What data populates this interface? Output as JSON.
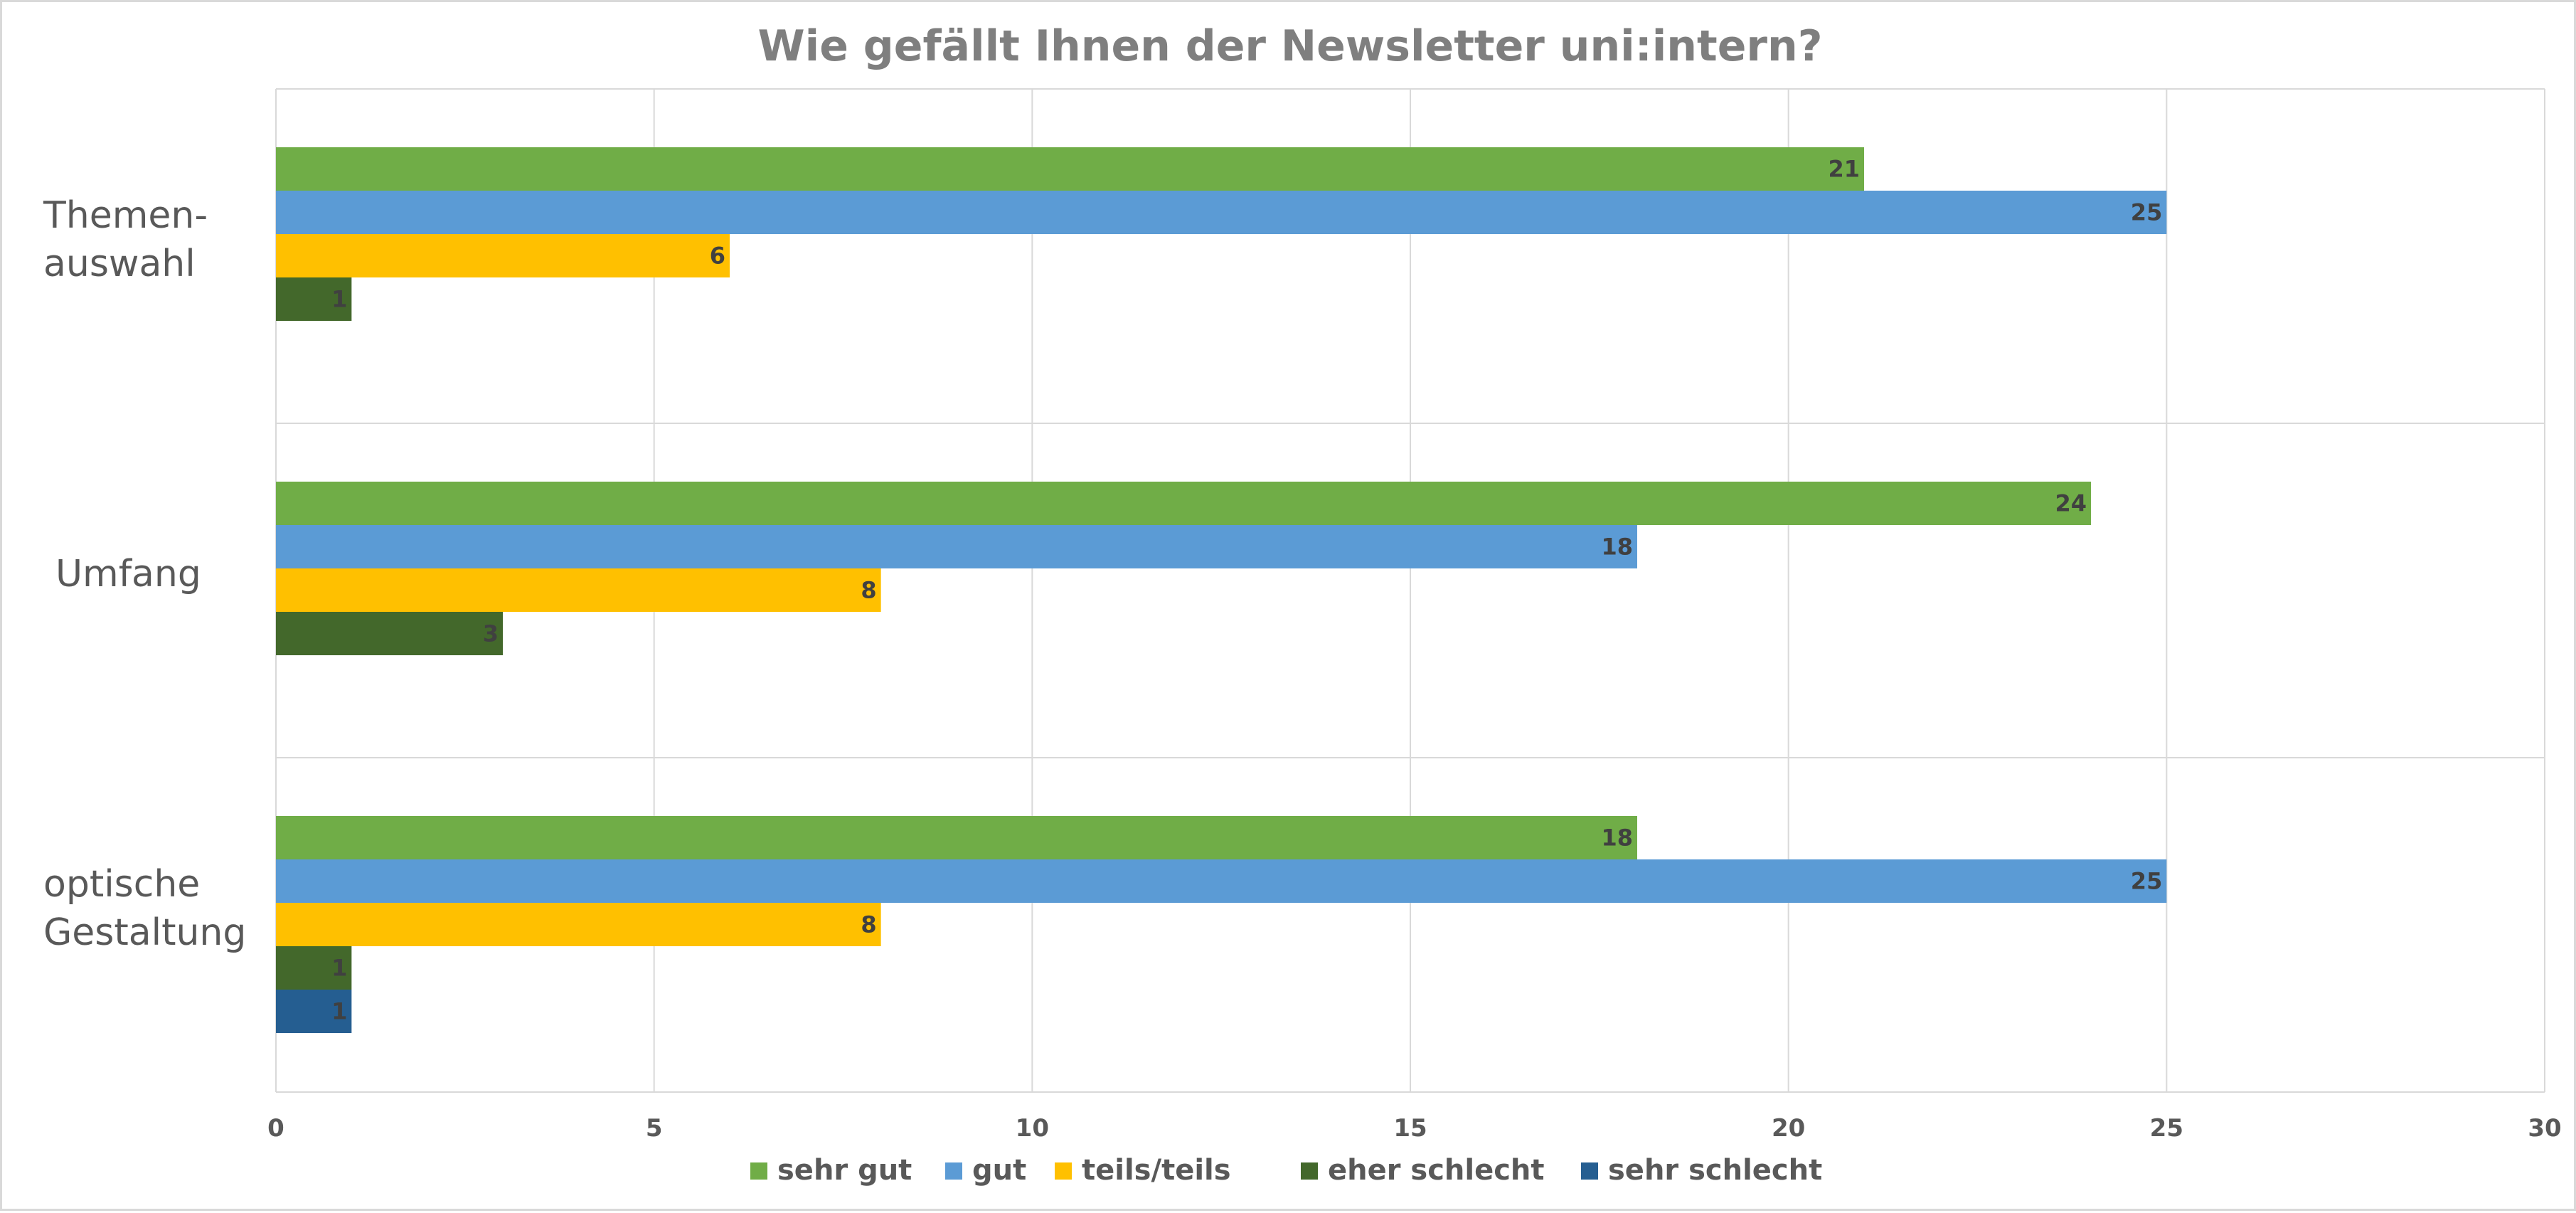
{
  "chart_data": {
    "type": "bar",
    "orientation": "horizontal",
    "title": "Wie gefällt Ihnen der Newsletter uni:intern?",
    "categories": [
      [
        "Themen-",
        "auswahl"
      ],
      [
        "Umfang"
      ],
      [
        "optische",
        "Gestaltung"
      ]
    ],
    "series": [
      {
        "name": "sehr gut",
        "color": "#70ad47",
        "values": [
          21,
          24,
          18
        ]
      },
      {
        "name": "gut",
        "color": "#5b9bd5",
        "values": [
          25,
          18,
          25
        ]
      },
      {
        "name": "teils/teils",
        "color": "#ffc000",
        "values": [
          6,
          8,
          8
        ]
      },
      {
        "name": "eher schlecht",
        "color": "#43682b",
        "values": [
          1,
          3,
          1
        ]
      },
      {
        "name": "sehr schlecht",
        "color": "#255e91",
        "values": [
          null,
          null,
          1
        ]
      }
    ],
    "xlim": [
      0,
      30
    ],
    "xticks": [
      "0",
      "5",
      "10",
      "15",
      "20",
      "25",
      "30"
    ],
    "grid": true,
    "legend_position": "bottom",
    "data_labels": true
  }
}
